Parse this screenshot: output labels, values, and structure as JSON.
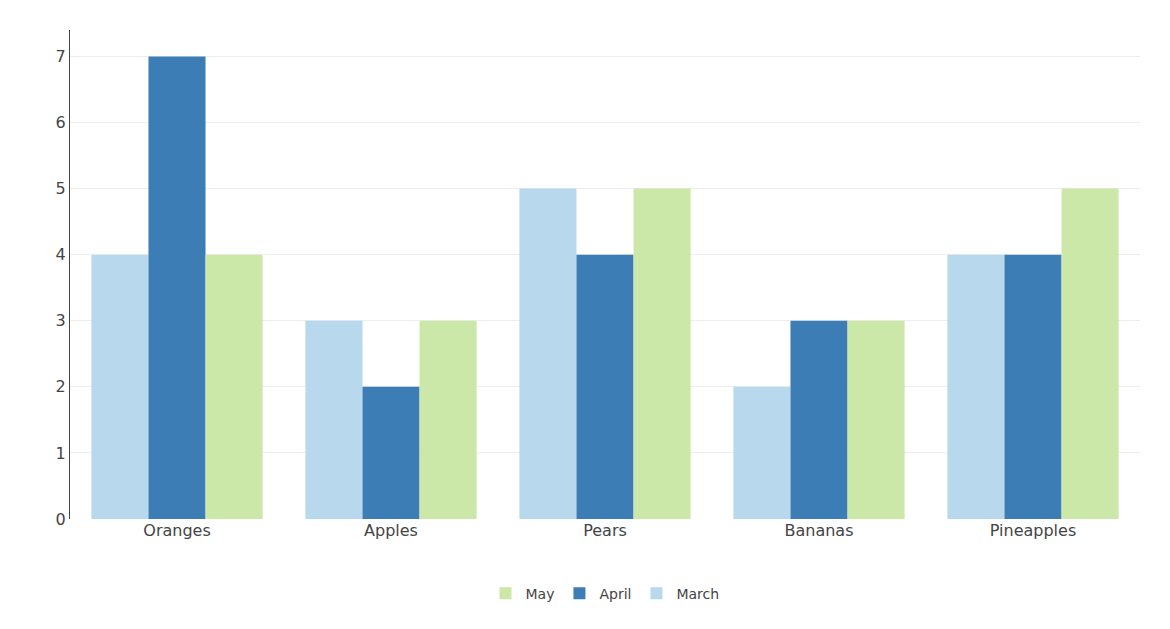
{
  "chart_data": {
    "type": "bar",
    "categories": [
      "Oranges",
      "Apples",
      "Pears",
      "Bananas",
      "Pineapples"
    ],
    "series": [
      {
        "name": "March",
        "color": "#b8d9ed",
        "values": [
          4,
          3,
          5,
          2,
          4
        ]
      },
      {
        "name": "April",
        "color": "#3d7db5",
        "values": [
          7,
          2,
          4,
          3,
          4
        ]
      },
      {
        "name": "May",
        "color": "#cce8a8",
        "values": [
          4,
          3,
          5,
          3,
          5
        ]
      }
    ],
    "ylim": [
      0,
      7.4
    ],
    "yticks": [
      0,
      1,
      2,
      3,
      4,
      5,
      6,
      7
    ],
    "grid": true,
    "legend": "bottom"
  }
}
